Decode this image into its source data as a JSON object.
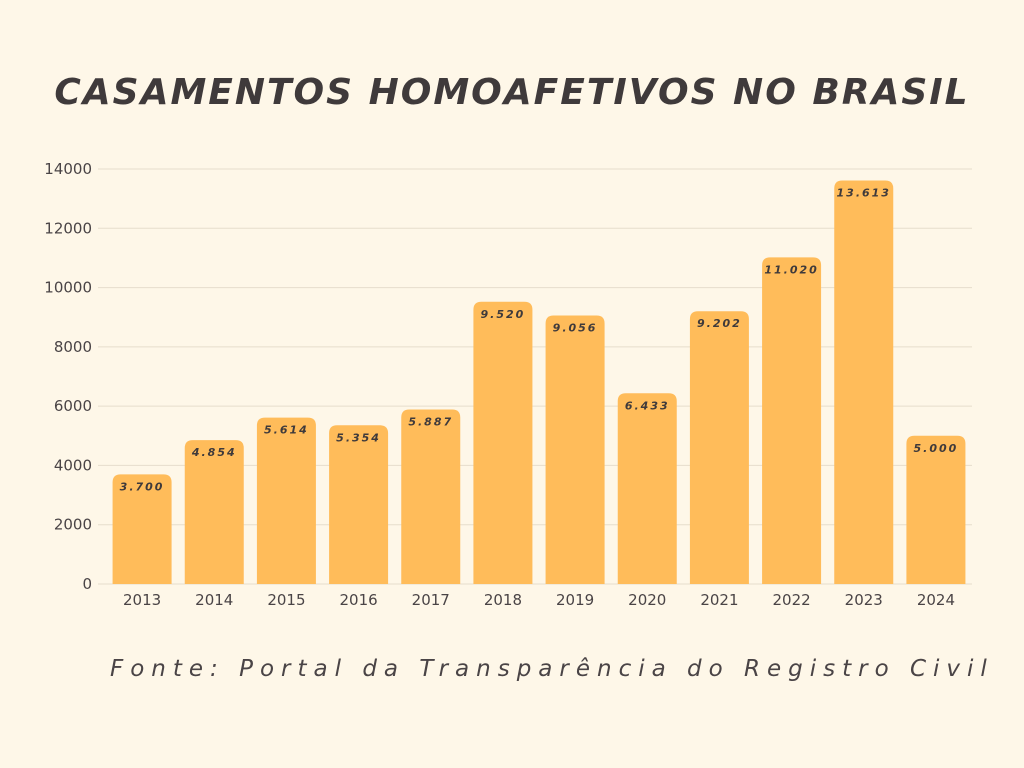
{
  "chart_data": {
    "type": "bar",
    "title": "CASAMENTOS HOMOAFETIVOS NO BRASIL",
    "source": "Fonte: Portal da Transparência do Registro Civil",
    "xlabel": "",
    "ylabel": "",
    "categories": [
      "2013",
      "2014",
      "2015",
      "2016",
      "2017",
      "2018",
      "2019",
      "2020",
      "2021",
      "2022",
      "2023",
      "2024"
    ],
    "values": [
      3700,
      4854,
      5614,
      5354,
      5887,
      9520,
      9056,
      6433,
      9202,
      11020,
      13613,
      5000
    ],
    "value_labels": [
      "3.700",
      "4.854",
      "5.614",
      "5.354",
      "5.887",
      "9.520",
      "9.056",
      "6.433",
      "9.202",
      "11.020",
      "13.613",
      "5.000"
    ],
    "yticks": [
      "0",
      "2000",
      "4000",
      "6000",
      "8000",
      "10000",
      "12000",
      "14000"
    ],
    "ylim": [
      0,
      14000
    ],
    "grid": true,
    "legend": "none",
    "bar_color": "#FFBC5A",
    "grid_color": "#E6DDCC",
    "text_color": "#3F3A3B",
    "background_color": "#FEF7E8"
  }
}
